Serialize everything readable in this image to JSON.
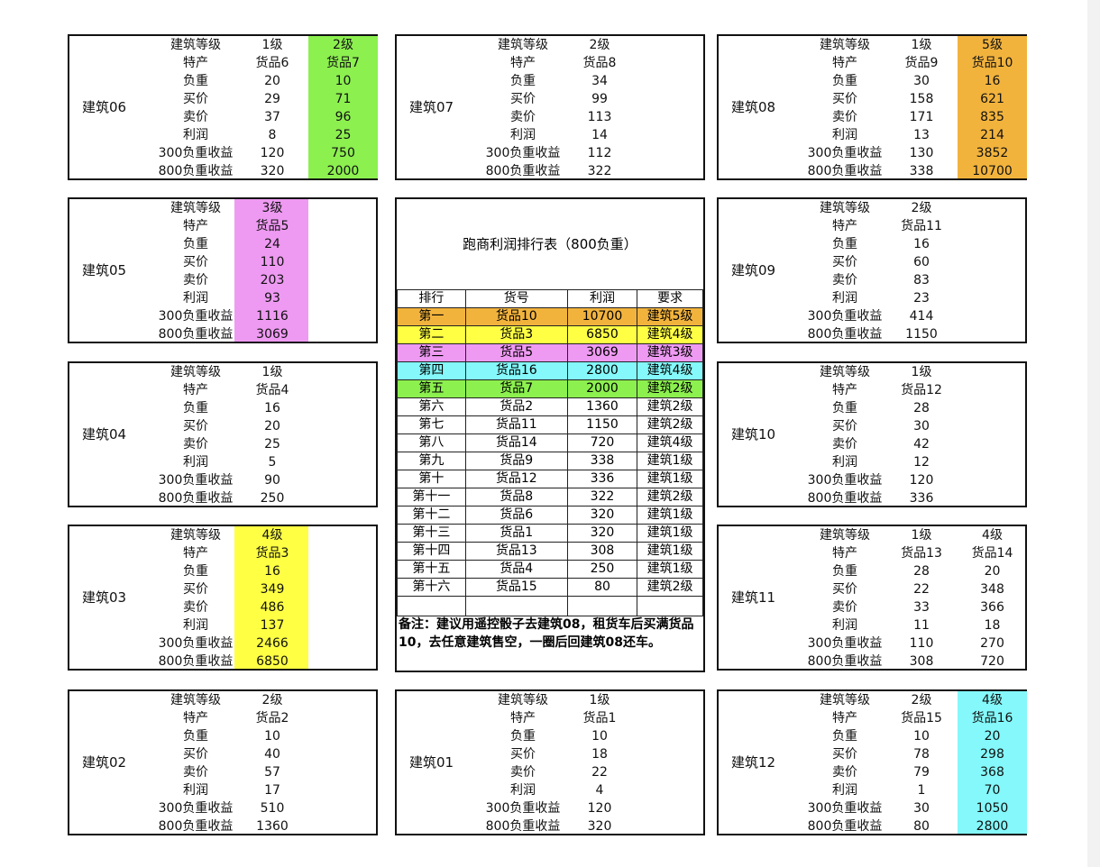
{
  "row_labels": [
    "建筑等级",
    "特产",
    "负重",
    "买价",
    "卖价",
    "利润",
    "300负重收益",
    "800负重收益"
  ],
  "colors": {
    "orange": "#f2b33d",
    "yellow": "#ffff44",
    "pink": "#ee9af2",
    "cyan": "#84f8fa",
    "green": "#8cf04f"
  },
  "buildings": [
    {
      "name": "建筑06",
      "pos": "L1",
      "cols": [
        {
          "values": [
            "1级",
            "货品6",
            "20",
            "29",
            "37",
            "8",
            "120",
            "320"
          ]
        },
        {
          "values": [
            "2级",
            "货品7",
            "10",
            "71",
            "96",
            "25",
            "750",
            "2000"
          ],
          "highlight": "green"
        }
      ]
    },
    {
      "name": "建筑07",
      "pos": "M1",
      "cols": [
        {
          "values": [
            "2级",
            "货品8",
            "34",
            "99",
            "113",
            "14",
            "112",
            "322"
          ]
        }
      ]
    },
    {
      "name": "建筑08",
      "pos": "R1",
      "cols": [
        {
          "values": [
            "1级",
            "货品9",
            "30",
            "158",
            "171",
            "13",
            "130",
            "338"
          ]
        },
        {
          "values": [
            "5级",
            "货品10",
            "16",
            "621",
            "835",
            "214",
            "3852",
            "10700"
          ],
          "highlight": "orange"
        }
      ]
    },
    {
      "name": "建筑05",
      "pos": "L2",
      "cols": [
        {
          "values": [
            "3级",
            "货品5",
            "24",
            "110",
            "203",
            "93",
            "1116",
            "3069"
          ],
          "highlight": "pink"
        }
      ]
    },
    {
      "name": "建筑09",
      "pos": "R2",
      "cols": [
        {
          "values": [
            "2级",
            "货品11",
            "16",
            "60",
            "83",
            "23",
            "414",
            "1150"
          ]
        }
      ]
    },
    {
      "name": "建筑04",
      "pos": "L3",
      "cols": [
        {
          "values": [
            "1级",
            "货品4",
            "16",
            "20",
            "25",
            "5",
            "90",
            "250"
          ]
        }
      ]
    },
    {
      "name": "建筑10",
      "pos": "R3",
      "cols": [
        {
          "values": [
            "1级",
            "货品12",
            "28",
            "30",
            "42",
            "12",
            "120",
            "336"
          ]
        }
      ]
    },
    {
      "name": "建筑03",
      "pos": "L4",
      "cols": [
        {
          "values": [
            "4级",
            "货品3",
            "16",
            "349",
            "486",
            "137",
            "2466",
            "6850"
          ],
          "highlight": "yellow"
        }
      ]
    },
    {
      "name": "建筑11",
      "pos": "R4",
      "cols": [
        {
          "values": [
            "1级",
            "货品13",
            "28",
            "22",
            "33",
            "11",
            "110",
            "308"
          ]
        },
        {
          "values": [
            "4级",
            "货品14",
            "20",
            "348",
            "366",
            "18",
            "270",
            "720"
          ]
        }
      ]
    },
    {
      "name": "建筑02",
      "pos": "L5",
      "cols": [
        {
          "values": [
            "2级",
            "货品2",
            "10",
            "40",
            "57",
            "17",
            "510",
            "1360"
          ]
        }
      ]
    },
    {
      "name": "建筑01",
      "pos": "M5",
      "cols": [
        {
          "values": [
            "1级",
            "货品1",
            "10",
            "18",
            "22",
            "4",
            "120",
            "320"
          ]
        }
      ]
    },
    {
      "name": "建筑12",
      "pos": "R5",
      "cols": [
        {
          "values": [
            "2级",
            "货品15",
            "10",
            "78",
            "79",
            "1",
            "30",
            "80"
          ]
        },
        {
          "values": [
            "4级",
            "货品16",
            "20",
            "298",
            "368",
            "70",
            "1050",
            "2800"
          ],
          "highlight": "cyan"
        }
      ]
    }
  ],
  "ranking": {
    "title": "跑商利润排行表（800负重）",
    "headers": [
      "排行",
      "货号",
      "利润",
      "要求"
    ],
    "rows": [
      {
        "cells": [
          "第一",
          "货品10",
          "10700",
          "建筑5级"
        ],
        "highlight": "orange"
      },
      {
        "cells": [
          "第二",
          "货品3",
          "6850",
          "建筑4级"
        ],
        "highlight": "yellow"
      },
      {
        "cells": [
          "第三",
          "货品5",
          "3069",
          "建筑3级"
        ],
        "highlight": "pink"
      },
      {
        "cells": [
          "第四",
          "货品16",
          "2800",
          "建筑4级"
        ],
        "highlight": "cyan"
      },
      {
        "cells": [
          "第五",
          "货品7",
          "2000",
          "建筑2级"
        ],
        "highlight": "green"
      },
      {
        "cells": [
          "第六",
          "货品2",
          "1360",
          "建筑2级"
        ]
      },
      {
        "cells": [
          "第七",
          "货品11",
          "1150",
          "建筑2级"
        ]
      },
      {
        "cells": [
          "第八",
          "货品14",
          "720",
          "建筑4级"
        ]
      },
      {
        "cells": [
          "第九",
          "货品9",
          "338",
          "建筑1级"
        ]
      },
      {
        "cells": [
          "第十",
          "货品12",
          "336",
          "建筑1级"
        ]
      },
      {
        "cells": [
          "第十一",
          "货品8",
          "322",
          "建筑2级"
        ]
      },
      {
        "cells": [
          "第十二",
          "货品6",
          "320",
          "建筑1级"
        ]
      },
      {
        "cells": [
          "第十三",
          "货品1",
          "320",
          "建筑1级"
        ]
      },
      {
        "cells": [
          "第十四",
          "货品13",
          "308",
          "建筑1级"
        ]
      },
      {
        "cells": [
          "第十五",
          "货品4",
          "250",
          "建筑1级"
        ]
      },
      {
        "cells": [
          "第十六",
          "货品15",
          "80",
          "建筑2级"
        ]
      }
    ],
    "note": "备注：建议用遥控骰子去建筑08，租货车后买满货品10，去任意建筑售空，一圈后回建筑08还车。"
  }
}
